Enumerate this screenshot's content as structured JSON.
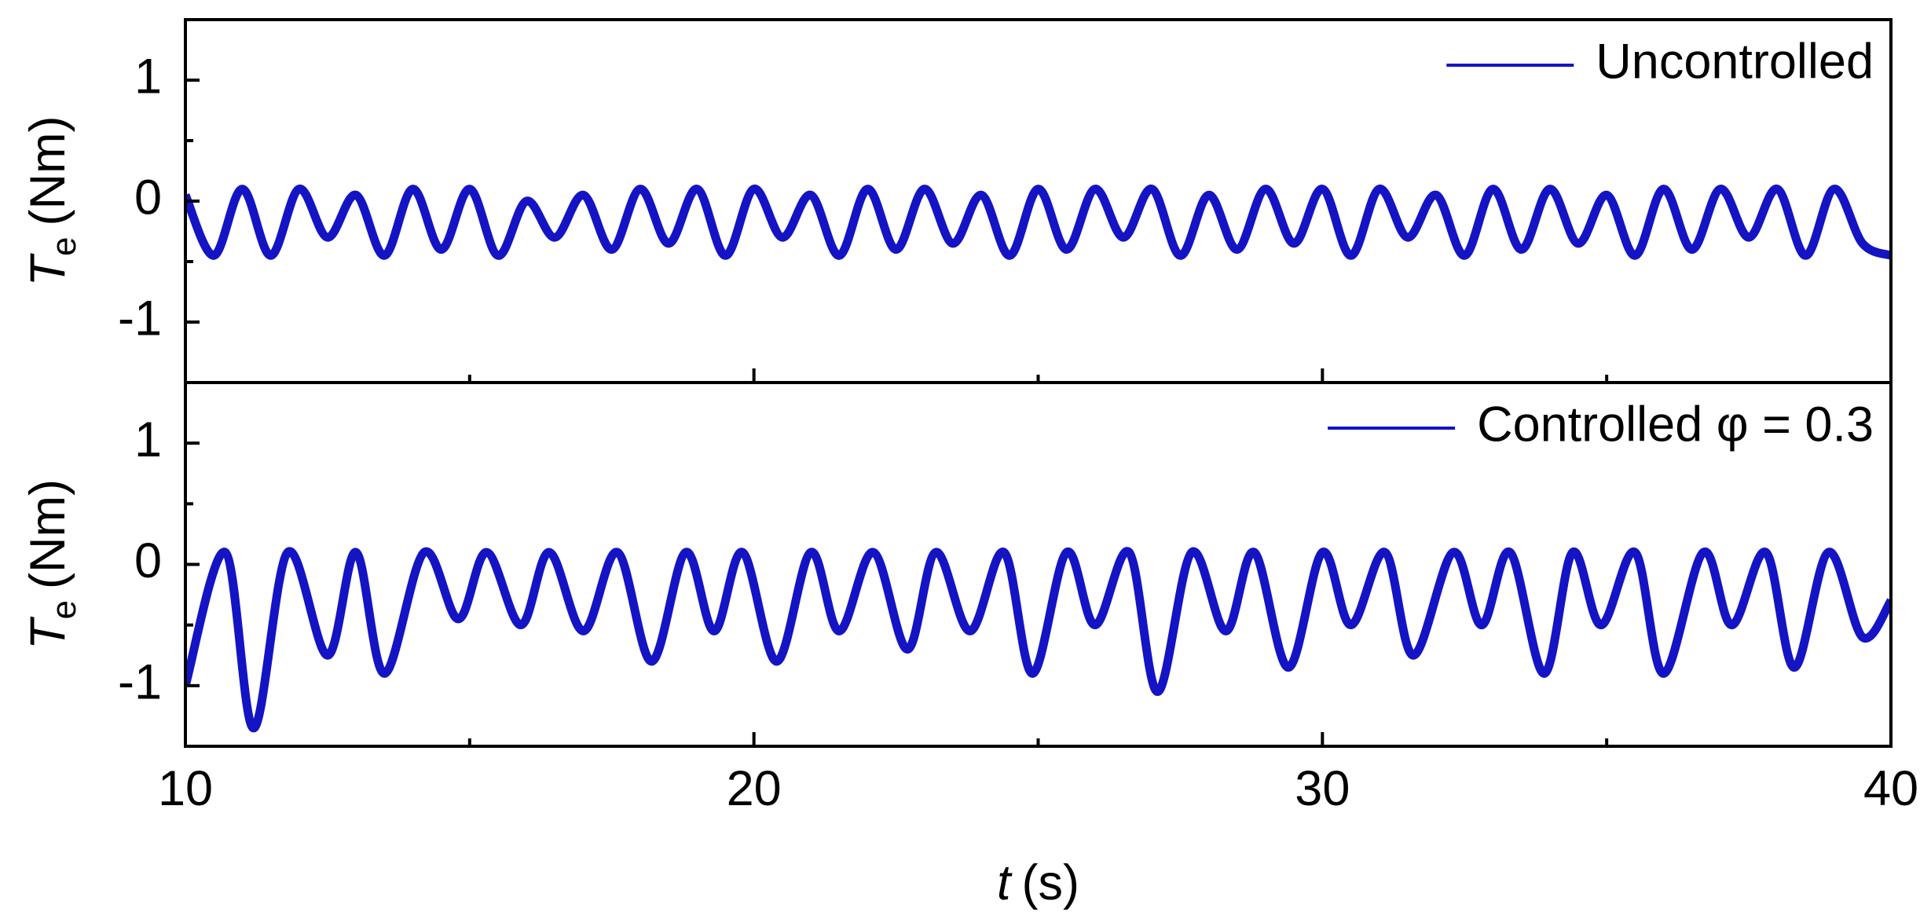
{
  "chart_data": [
    {
      "type": "line",
      "ylabel_symbol": "T",
      "ylabel_subscript": "e",
      "ylabel_unit": "(Nm)",
      "xlim": [
        10,
        40
      ],
      "xticks": [
        10,
        20,
        30,
        40
      ],
      "xminorticks": [
        15,
        25,
        35
      ],
      "ylim": [
        -1.5,
        1.5
      ],
      "yticks": [
        -1,
        0,
        1
      ],
      "yminorticks": [
        -0.5,
        0.5
      ],
      "legend": "upper right",
      "series": [
        {
          "name": "Uncontrolled",
          "color": "#1414c4",
          "x": [
            10,
            10.5,
            11,
            11.5,
            12,
            12.5,
            13,
            13.5,
            14,
            14.5,
            15,
            15.5,
            16,
            16.5,
            17,
            17.5,
            18,
            18.5,
            19,
            19.5,
            20,
            20.5,
            21,
            21.5,
            22,
            22.5,
            23,
            23.5,
            24,
            24.5,
            25,
            25.5,
            26,
            26.5,
            27,
            27.5,
            28,
            28.5,
            29,
            29.5,
            30,
            30.5,
            31,
            31.5,
            32,
            32.5,
            33,
            33.5,
            34,
            34.5,
            35,
            35.5,
            36,
            36.5,
            37,
            37.5,
            38,
            38.5,
            39,
            39.5,
            40
          ],
          "values": [
            0.05,
            -0.45,
            0.1,
            -0.45,
            0.1,
            -0.3,
            0.05,
            -0.45,
            0.1,
            -0.4,
            0.1,
            -0.45,
            0.0,
            -0.3,
            0.05,
            -0.4,
            0.1,
            -0.35,
            0.1,
            -0.45,
            0.1,
            -0.3,
            0.05,
            -0.45,
            0.1,
            -0.4,
            0.1,
            -0.35,
            0.05,
            -0.45,
            0.1,
            -0.4,
            0.1,
            -0.3,
            0.1,
            -0.45,
            0.05,
            -0.4,
            0.1,
            -0.35,
            0.1,
            -0.45,
            0.1,
            -0.3,
            0.05,
            -0.45,
            0.1,
            -0.4,
            0.1,
            -0.35,
            0.05,
            -0.45,
            0.1,
            -0.4,
            0.1,
            -0.3,
            0.1,
            -0.45,
            0.1,
            -0.35,
            -0.45
          ]
        }
      ]
    },
    {
      "type": "line",
      "ylabel_symbol": "T",
      "ylabel_subscript": "e",
      "ylabel_unit": "(Nm)",
      "xlabel_symbol": "t",
      "xlabel_unit": "(s)",
      "xlim": [
        10,
        40
      ],
      "xticks": [
        10,
        20,
        30,
        40
      ],
      "xminorticks": [
        15,
        25,
        35
      ],
      "ylim": [
        -1.5,
        1.5
      ],
      "yticks": [
        -1,
        0,
        1
      ],
      "yminorticks": [
        -0.5,
        0.5
      ],
      "legend": "upper right",
      "series": [
        {
          "name": "Controlled φ = 0.3",
          "color": "#1414c4",
          "x": [
            10,
            10.7,
            11.2,
            11.8,
            12.5,
            13.0,
            13.5,
            14.2,
            14.8,
            15.3,
            15.9,
            16.4,
            17.0,
            17.6,
            18.2,
            18.8,
            19.3,
            19.8,
            20.4,
            21.0,
            21.5,
            22.1,
            22.7,
            23.2,
            23.8,
            24.4,
            24.9,
            25.5,
            26.0,
            26.6,
            27.1,
            27.7,
            28.3,
            28.8,
            29.4,
            30.0,
            30.5,
            31.1,
            31.6,
            32.3,
            32.8,
            33.3,
            33.9,
            34.4,
            34.9,
            35.5,
            36.0,
            36.7,
            37.2,
            37.8,
            38.3,
            38.9,
            39.5,
            40.0
          ],
          "values": [
            -1.0,
            0.1,
            -1.35,
            0.1,
            -0.75,
            0.1,
            -0.9,
            0.1,
            -0.45,
            0.1,
            -0.5,
            0.1,
            -0.55,
            0.1,
            -0.8,
            0.1,
            -0.55,
            0.1,
            -0.8,
            0.1,
            -0.55,
            0.1,
            -0.7,
            0.1,
            -0.55,
            0.1,
            -0.9,
            0.1,
            -0.5,
            0.1,
            -1.05,
            0.1,
            -0.55,
            0.1,
            -0.85,
            0.1,
            -0.5,
            0.1,
            -0.75,
            0.1,
            -0.5,
            0.1,
            -0.9,
            0.1,
            -0.5,
            0.1,
            -0.9,
            0.1,
            -0.5,
            0.1,
            -0.85,
            0.1,
            -0.6,
            -0.3
          ]
        }
      ]
    }
  ]
}
